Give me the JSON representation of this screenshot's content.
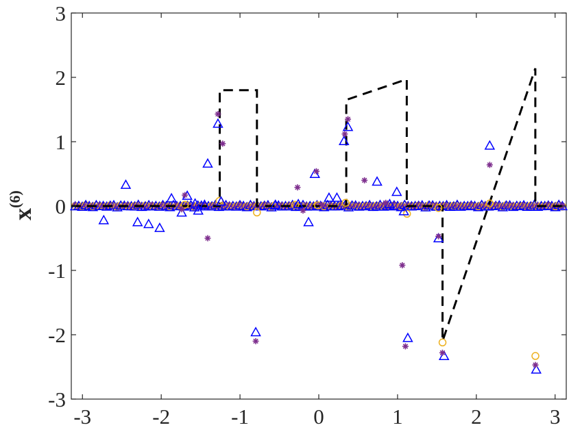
{
  "chart_data": {
    "type": "scatter",
    "ylabel": "x",
    "ylabel_superscript": "(6)",
    "xlim": [
      -3.14159,
      3.14159
    ],
    "ylim": [
      -3,
      3
    ],
    "xticks": [
      -3,
      -2,
      -1,
      0,
      1,
      2,
      3
    ],
    "yticks": [
      -3,
      -2,
      -1,
      0,
      1,
      2,
      3
    ],
    "grid": false,
    "colors": {
      "dashed": "#000000",
      "circle": "#EDB120",
      "triangle": "#0000FF",
      "star": "#7E2F8E"
    },
    "series": [
      {
        "marker": "dashed-line",
        "points": [
          [
            -3.14159,
            0
          ],
          [
            -1.257,
            0
          ],
          [
            -1.257,
            1.8
          ],
          [
            -0.785,
            1.8
          ],
          [
            -0.785,
            0
          ],
          [
            0.349,
            0
          ],
          [
            0.349,
            1.65
          ],
          [
            1.117,
            1.97
          ],
          [
            1.117,
            0
          ],
          [
            1.571,
            0
          ],
          [
            1.571,
            -2.1
          ],
          [
            2.749,
            2.14
          ],
          [
            2.749,
            0
          ],
          [
            3.14159,
            0
          ]
        ]
      },
      {
        "marker": "circle",
        "points": [
          [
            -1.26,
            0.08
          ],
          [
            -0.785,
            -0.1
          ],
          [
            -0.01,
            0.01
          ],
          [
            0.34,
            0.05
          ],
          [
            1.12,
            -0.12
          ],
          [
            1.52,
            -0.03
          ],
          [
            1.571,
            -2.12
          ],
          [
            2.17,
            0.04
          ],
          [
            2.75,
            -2.33
          ],
          [
            -1.7,
            0.02
          ],
          [
            -0.3,
            0.02
          ]
        ]
      },
      {
        "marker": "triangle",
        "points": [
          [
            -2.73,
            -0.22
          ],
          [
            -2.45,
            0.33
          ],
          [
            -2.3,
            -0.25
          ],
          [
            -2.16,
            -0.28
          ],
          [
            -2.02,
            -0.34
          ],
          [
            -1.87,
            0.12
          ],
          [
            -1.74,
            -0.1
          ],
          [
            -1.67,
            0.16
          ],
          [
            -1.57,
            0.04
          ],
          [
            -1.53,
            -0.07
          ],
          [
            -1.45,
            0.02
          ],
          [
            -1.41,
            0.66
          ],
          [
            -1.28,
            1.28
          ],
          [
            -1.24,
            0.07
          ],
          [
            -0.8,
            -1.96
          ],
          [
            -0.26,
            0.03
          ],
          [
            -0.13,
            -0.25
          ],
          [
            -0.05,
            0.5
          ],
          [
            0.13,
            0.13
          ],
          [
            0.23,
            0.13
          ],
          [
            0.32,
            1.01
          ],
          [
            0.37,
            1.23
          ],
          [
            0.74,
            0.38
          ],
          [
            0.99,
            0.22
          ],
          [
            1.08,
            -0.08
          ],
          [
            1.13,
            -2.05
          ],
          [
            1.52,
            -0.5
          ],
          [
            1.59,
            -2.33
          ],
          [
            2.17,
            0.94
          ],
          [
            2.76,
            -2.54
          ],
          [
            -0.55,
            0.02
          ],
          [
            0.9,
            0.03
          ]
        ]
      },
      {
        "marker": "asterisk",
        "points": [
          [
            -1.41,
            -0.5
          ],
          [
            -1.28,
            1.43
          ],
          [
            -1.22,
            0.97
          ],
          [
            -0.8,
            -2.1
          ],
          [
            -0.27,
            0.29
          ],
          [
            -0.03,
            0.54
          ],
          [
            0.33,
            1.12
          ],
          [
            0.37,
            1.35
          ],
          [
            0.58,
            0.4
          ],
          [
            1.06,
            -0.92
          ],
          [
            1.1,
            -2.18
          ],
          [
            1.52,
            -0.47
          ],
          [
            1.57,
            -2.28
          ],
          [
            2.17,
            0.64
          ],
          [
            2.75,
            -2.47
          ],
          [
            -1.7,
            0.17
          ],
          [
            -1.74,
            -0.05
          ],
          [
            -0.2,
            -0.07
          ],
          [
            0.04,
            0.02
          ],
          [
            0.85,
            0.05
          ]
        ]
      }
    ]
  }
}
